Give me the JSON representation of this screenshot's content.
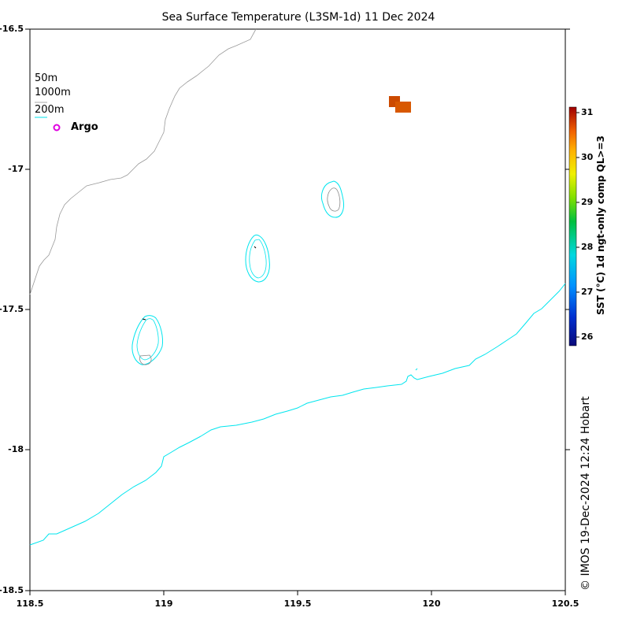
{
  "title": "Sea Surface Temperature (L3SM-1d) 11 Dec 2024",
  "legend": {
    "items": [
      {
        "label": "50m",
        "color": "#ffffff"
      },
      {
        "label": "1000m",
        "color": "#aaaaaa"
      },
      {
        "label": "200m",
        "color": "#00e5ee"
      }
    ],
    "argo": {
      "label": "Argo",
      "color": "#e000e0"
    }
  },
  "axes": {
    "x_ticks": [
      "118.5",
      "119",
      "119.5",
      "120",
      "120.5"
    ],
    "y_ticks": [
      "-16.5",
      "-17",
      "-17.5",
      "-18",
      "-18.5"
    ],
    "xlim": [
      118.5,
      120.5
    ],
    "ylim": [
      -18.5,
      -16.5
    ]
  },
  "colorbar": {
    "label": "SST (°C) 1d ngt-only comp QL>=3",
    "ticks": [
      "26",
      "27",
      "28",
      "29",
      "30",
      "31"
    ],
    "range": [
      25.8,
      31.2
    ]
  },
  "credit": "© IMOS 19-Dec-2024 12:24 Hobart",
  "chart_data": {
    "type": "heatmap",
    "title": "Sea Surface Temperature (L3SM-1d) 11 Dec 2024",
    "xlabel": "",
    "ylabel": "",
    "xlim": [
      118.5,
      120.5
    ],
    "ylim": [
      -18.5,
      -16.5
    ],
    "colorbar_range": [
      25.8,
      31.2
    ],
    "sst_cells": [
      {
        "lon": 119.86,
        "lat": -16.76,
        "value": 30.6
      },
      {
        "lon": 119.9,
        "lat": -16.78,
        "value": 30.5
      }
    ]
  }
}
